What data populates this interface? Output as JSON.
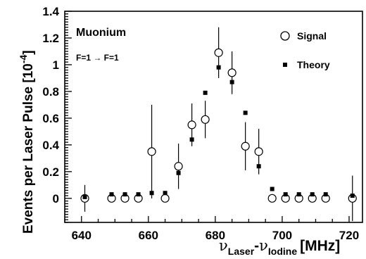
{
  "chart_data": {
    "type": "scatter",
    "title": "",
    "xlabel": {
      "symbol": "ν",
      "sub1": "Laser",
      "minus": "-",
      "sub2": "Iodine",
      "unit": "[MHz]"
    },
    "ylabel": "Events per Laser Pulse [10",
    "ylabel_exponent": "-4",
    "ylabel_close": "]",
    "xlim": [
      635,
      724
    ],
    "ylim": [
      -0.18,
      1.4
    ],
    "xticks": [
      640,
      660,
      680,
      700,
      720
    ],
    "yticks": [
      0,
      0.2,
      0.4,
      0.6,
      0.8,
      1,
      1.2,
      1.4
    ],
    "ytick_labels": [
      "0",
      "0.2",
      "0.4",
      "0.6",
      "0.8",
      "1",
      "1.2",
      "1.4"
    ],
    "annotations": {
      "title": "Muonium",
      "transition": "F=1 → F=1"
    },
    "series": [
      {
        "name": "Signal",
        "marker": "open-circle",
        "x": [
          641,
          649,
          653,
          657,
          661,
          665,
          669,
          673,
          677,
          681,
          685,
          689,
          693,
          697,
          701,
          705,
          709,
          713,
          721
        ],
        "y": [
          0,
          0,
          0,
          0,
          0.35,
          0,
          0.24,
          0.55,
          0.59,
          1.09,
          0.94,
          0.39,
          0.35,
          0,
          0,
          0,
          0,
          0,
          0
        ],
        "err": [
          0.1,
          0,
          0,
          0,
          0.35,
          0,
          0.17,
          0.16,
          0.14,
          0.19,
          0.16,
          0.18,
          0.17,
          0,
          0,
          0,
          0,
          0,
          0.17
        ]
      },
      {
        "name": "Theory",
        "marker": "filled-square",
        "x": [
          641,
          649,
          653,
          657,
          661,
          665,
          669,
          673,
          677,
          681,
          685,
          689,
          693,
          697,
          701,
          705,
          709,
          713,
          721
        ],
        "y": [
          0.01,
          0.03,
          0.03,
          0.03,
          0.04,
          0.04,
          0.19,
          0.44,
          0.79,
          0.98,
          0.87,
          0.64,
          0.24,
          0.07,
          0.03,
          0.03,
          0.03,
          0.03,
          0.02
        ]
      }
    ],
    "grid": false,
    "legend": "top-right"
  }
}
